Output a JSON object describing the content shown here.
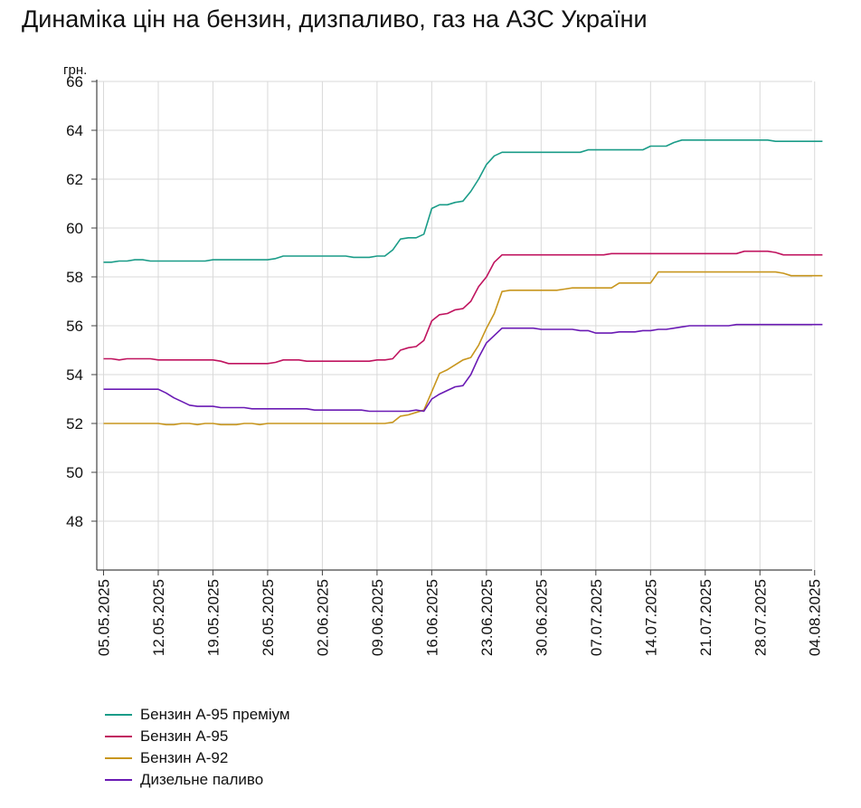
{
  "title": "Динаміка цін на бензин, дизпаливо, газ на АЗС України",
  "chart_data": {
    "type": "line",
    "title": "Динаміка цін на бензин, дизпаливо, газ на АЗС України",
    "ylabel": "грн.",
    "xlabel": "",
    "ylim": [
      46,
      66
    ],
    "yticks": [
      48,
      50,
      52,
      54,
      56,
      58,
      60,
      62,
      64,
      66
    ],
    "grid": true,
    "legend_position": "bottom-left",
    "x_tick_labels": [
      "05.05.2025",
      "12.05.2025",
      "19.05.2025",
      "26.05.2025",
      "02.06.2025",
      "09.06.2025",
      "16.06.2025",
      "23.06.2025",
      "30.06.2025",
      "07.07.2025",
      "14.07.2025",
      "21.07.2025",
      "28.07.2025",
      "04.08.2025"
    ],
    "x": [
      "05.05",
      "06.05",
      "07.05",
      "08.05",
      "09.05",
      "10.05",
      "11.05",
      "12.05",
      "13.05",
      "14.05",
      "15.05",
      "16.05",
      "17.05",
      "18.05",
      "19.05",
      "20.05",
      "21.05",
      "22.05",
      "23.05",
      "24.05",
      "25.05",
      "26.05",
      "27.05",
      "28.05",
      "29.05",
      "30.05",
      "31.05",
      "01.06",
      "02.06",
      "03.06",
      "04.06",
      "05.06",
      "06.06",
      "07.06",
      "08.06",
      "09.06",
      "10.06",
      "11.06",
      "12.06",
      "13.06",
      "14.06",
      "15.06",
      "16.06",
      "17.06",
      "18.06",
      "19.06",
      "20.06",
      "21.06",
      "22.06",
      "23.06",
      "24.06",
      "25.06",
      "26.06",
      "27.06",
      "28.06",
      "29.06",
      "30.06",
      "01.07",
      "02.07",
      "03.07",
      "04.07",
      "05.07",
      "06.07",
      "07.07",
      "08.07",
      "09.07",
      "10.07",
      "11.07",
      "12.07",
      "13.07",
      "14.07",
      "15.07",
      "16.07",
      "17.07",
      "18.07",
      "19.07",
      "20.07",
      "21.07",
      "22.07",
      "23.07",
      "24.07",
      "25.07",
      "26.07",
      "27.07",
      "28.07",
      "29.07",
      "30.07",
      "31.07",
      "01.08",
      "02.08",
      "03.08",
      "04.08",
      "05.08"
    ],
    "series": [
      {
        "name": "Бензин А-95 преміум",
        "color": "#1a9c88",
        "values": [
          58.6,
          58.6,
          58.65,
          58.65,
          58.7,
          58.7,
          58.65,
          58.65,
          58.65,
          58.65,
          58.65,
          58.65,
          58.65,
          58.65,
          58.7,
          58.7,
          58.7,
          58.7,
          58.7,
          58.7,
          58.7,
          58.7,
          58.75,
          58.85,
          58.85,
          58.85,
          58.85,
          58.85,
          58.85,
          58.85,
          58.85,
          58.85,
          58.8,
          58.8,
          58.8,
          58.85,
          58.85,
          59.1,
          59.55,
          59.6,
          59.6,
          59.75,
          60.8,
          60.95,
          60.95,
          61.05,
          61.1,
          61.5,
          62.0,
          62.6,
          62.95,
          63.1,
          63.1,
          63.1,
          63.1,
          63.1,
          63.1,
          63.1,
          63.1,
          63.1,
          63.1,
          63.1,
          63.2,
          63.2,
          63.2,
          63.2,
          63.2,
          63.2,
          63.2,
          63.2,
          63.35,
          63.35,
          63.35,
          63.5,
          63.6,
          63.6,
          63.6,
          63.6,
          63.6,
          63.6,
          63.6,
          63.6,
          63.6,
          63.6,
          63.6,
          63.6,
          63.55,
          63.55,
          63.55,
          63.55,
          63.55,
          63.55,
          63.55
        ]
      },
      {
        "name": "Бензин А-95",
        "color": "#c0145f",
        "values": [
          54.65,
          54.65,
          54.6,
          54.65,
          54.65,
          54.65,
          54.65,
          54.6,
          54.6,
          54.6,
          54.6,
          54.6,
          54.6,
          54.6,
          54.6,
          54.55,
          54.45,
          54.45,
          54.45,
          54.45,
          54.45,
          54.45,
          54.5,
          54.6,
          54.6,
          54.6,
          54.55,
          54.55,
          54.55,
          54.55,
          54.55,
          54.55,
          54.55,
          54.55,
          54.55,
          54.6,
          54.6,
          54.65,
          55.0,
          55.1,
          55.15,
          55.4,
          56.2,
          56.45,
          56.5,
          56.65,
          56.7,
          57.0,
          57.6,
          58.0,
          58.6,
          58.9,
          58.9,
          58.9,
          58.9,
          58.9,
          58.9,
          58.9,
          58.9,
          58.9,
          58.9,
          58.9,
          58.9,
          58.9,
          58.9,
          58.95,
          58.95,
          58.95,
          58.95,
          58.95,
          58.95,
          58.95,
          58.95,
          58.95,
          58.95,
          58.95,
          58.95,
          58.95,
          58.95,
          58.95,
          58.95,
          58.95,
          59.05,
          59.05,
          59.05,
          59.05,
          59.0,
          58.9,
          58.9,
          58.9,
          58.9,
          58.9,
          58.9
        ]
      },
      {
        "name": "Бензин А-92",
        "color": "#c8961e",
        "values": [
          52.0,
          52.0,
          52.0,
          52.0,
          52.0,
          52.0,
          52.0,
          52.0,
          51.95,
          51.95,
          52.0,
          52.0,
          51.95,
          52.0,
          52.0,
          51.95,
          51.95,
          51.95,
          52.0,
          52.0,
          51.95,
          52.0,
          52.0,
          52.0,
          52.0,
          52.0,
          52.0,
          52.0,
          52.0,
          52.0,
          52.0,
          52.0,
          52.0,
          52.0,
          52.0,
          52.0,
          52.0,
          52.05,
          52.3,
          52.35,
          52.45,
          52.55,
          53.3,
          54.05,
          54.2,
          54.4,
          54.6,
          54.7,
          55.2,
          55.9,
          56.5,
          57.4,
          57.45,
          57.45,
          57.45,
          57.45,
          57.45,
          57.45,
          57.45,
          57.5,
          57.55,
          57.55,
          57.55,
          57.55,
          57.55,
          57.55,
          57.75,
          57.75,
          57.75,
          57.75,
          57.75,
          58.2,
          58.2,
          58.2,
          58.2,
          58.2,
          58.2,
          58.2,
          58.2,
          58.2,
          58.2,
          58.2,
          58.2,
          58.2,
          58.2,
          58.2,
          58.2,
          58.15,
          58.05,
          58.05,
          58.05,
          58.05,
          58.05
        ]
      },
      {
        "name": "Дизельне паливо",
        "color": "#6a1ab4",
        "values": [
          53.4,
          53.4,
          53.4,
          53.4,
          53.4,
          53.4,
          53.4,
          53.4,
          53.25,
          53.05,
          52.9,
          52.75,
          52.7,
          52.7,
          52.7,
          52.65,
          52.65,
          52.65,
          52.65,
          52.6,
          52.6,
          52.6,
          52.6,
          52.6,
          52.6,
          52.6,
          52.6,
          52.55,
          52.55,
          52.55,
          52.55,
          52.55,
          52.55,
          52.55,
          52.5,
          52.5,
          52.5,
          52.5,
          52.5,
          52.5,
          52.55,
          52.5,
          53.0,
          53.2,
          53.35,
          53.5,
          53.55,
          54.0,
          54.7,
          55.3,
          55.6,
          55.9,
          55.9,
          55.9,
          55.9,
          55.9,
          55.85,
          55.85,
          55.85,
          55.85,
          55.85,
          55.8,
          55.8,
          55.7,
          55.7,
          55.7,
          55.75,
          55.75,
          55.75,
          55.8,
          55.8,
          55.85,
          55.85,
          55.9,
          55.95,
          56.0,
          56.0,
          56.0,
          56.0,
          56.0,
          56.0,
          56.05,
          56.05,
          56.05,
          56.05,
          56.05,
          56.05,
          56.05,
          56.05,
          56.05,
          56.05,
          56.05,
          56.05
        ]
      }
    ]
  }
}
